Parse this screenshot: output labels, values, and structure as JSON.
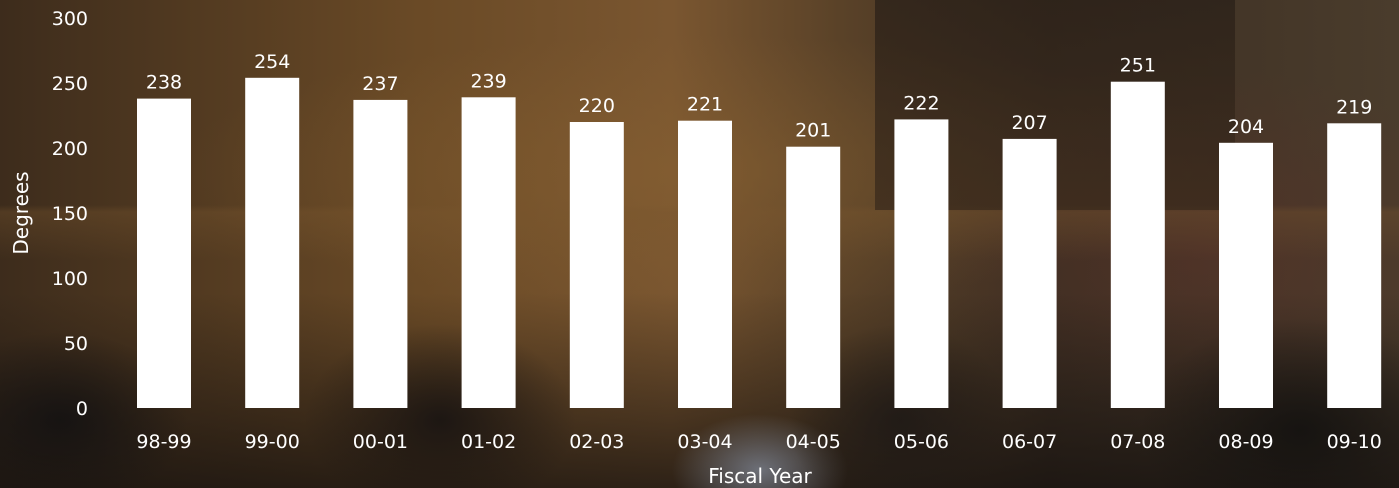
{
  "chart_data": {
    "type": "bar",
    "title": "",
    "xlabel": "Fiscal Year",
    "ylabel": "Degrees",
    "ylim": [
      0,
      300
    ],
    "yticks": [
      0,
      50,
      100,
      150,
      200,
      250,
      300
    ],
    "grid": false,
    "categories": [
      "98-99",
      "99-00",
      "00-01",
      "01-02",
      "02-03",
      "03-04",
      "04-05",
      "05-06",
      "06-07",
      "07-08",
      "08-09",
      "09-10"
    ],
    "values": [
      238,
      254,
      237,
      239,
      220,
      221,
      201,
      222,
      207,
      251,
      204,
      219
    ],
    "bar_color": "#ffffff",
    "text_color": "#ffffff",
    "show_data_labels": true
  }
}
